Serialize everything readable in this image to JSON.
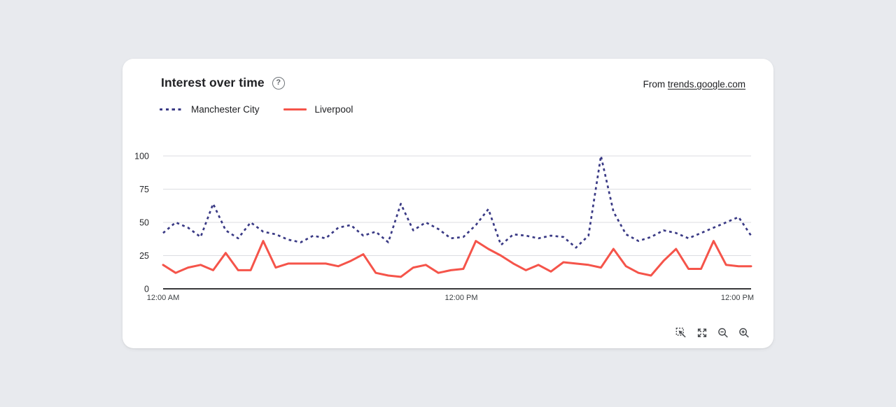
{
  "page": {
    "background_color": "#e8eaee"
  },
  "header": {
    "title": "Interest over time",
    "help_icon": "?",
    "source_prefix": "From ",
    "source_link": "trends.google.com"
  },
  "legend": [
    {
      "label": "Manchester City",
      "color": "#3a3a85",
      "style": "dashed"
    },
    {
      "label": "Liverpool",
      "color": "#f5544a",
      "style": "solid"
    }
  ],
  "toolbar": {
    "icons": [
      {
        "name": "zoom-selection-icon"
      },
      {
        "name": "fullscreen-icon"
      },
      {
        "name": "zoom-out-icon"
      },
      {
        "name": "zoom-in-icon"
      }
    ]
  },
  "chart_data": {
    "type": "line",
    "title": "Interest over time",
    "xlabel": "",
    "ylabel": "",
    "ylim": [
      0,
      100
    ],
    "y_ticks": [
      0,
      25,
      50,
      75,
      100
    ],
    "x_tick_labels": [
      "12:00 AM",
      "12:00 PM",
      "12:00 PM"
    ],
    "grid": true,
    "legend_position": "top-left",
    "series": [
      {
        "name": "Manchester City",
        "color": "#3a3a85",
        "dash": "dashed",
        "values": [
          42,
          50,
          46,
          39,
          64,
          44,
          38,
          50,
          43,
          41,
          37,
          35,
          40,
          38,
          46,
          48,
          40,
          43,
          35,
          64,
          44,
          50,
          45,
          38,
          39,
          48,
          60,
          33,
          41,
          40,
          38,
          40,
          39,
          31,
          40,
          100,
          58,
          41,
          36,
          39,
          44,
          42,
          38,
          42,
          46,
          50,
          54,
          40
        ]
      },
      {
        "name": "Liverpool",
        "color": "#f5544a",
        "dash": "solid",
        "values": [
          18,
          12,
          16,
          18,
          14,
          27,
          14,
          14,
          36,
          16,
          19,
          19,
          19,
          19,
          17,
          21,
          26,
          12,
          10,
          9,
          16,
          18,
          12,
          14,
          15,
          36,
          30,
          25,
          19,
          14,
          18,
          13,
          20,
          19,
          18,
          16,
          30,
          17,
          12,
          10,
          21,
          30,
          15,
          15,
          36,
          18,
          17,
          17
        ]
      }
    ]
  }
}
